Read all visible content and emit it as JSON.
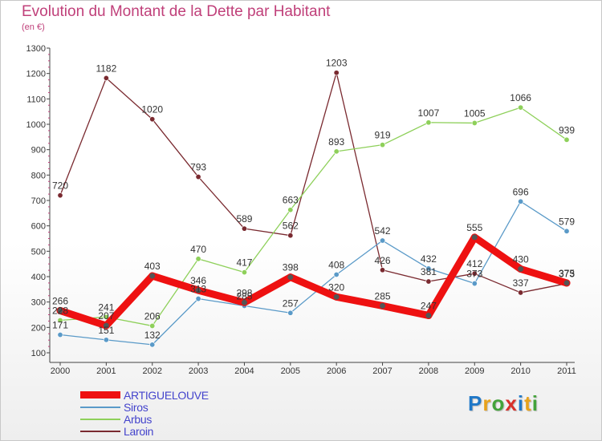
{
  "header": {
    "title": "Evolution du Montant de la Dette par Habitant",
    "subtitle": "(en €)"
  },
  "logo": {
    "text": "Proxiti",
    "letter_colors": [
      "#1f78c8",
      "#e8a21a",
      "#43a33a",
      "#d8302a",
      "#1f78c8",
      "#e8a21a",
      "#43a33a"
    ]
  },
  "chart_data": {
    "type": "line",
    "title": "Evolution du Montant de la Dette par Habitant",
    "subtitle": "(en €)",
    "xlabel": "",
    "ylabel": "",
    "categories": [
      "2000",
      "2001",
      "2002",
      "2003",
      "2004",
      "2005",
      "2006",
      "2007",
      "2008",
      "2009",
      "2010",
      "2011"
    ],
    "ylim": [
      100,
      1300
    ],
    "yticks": [
      100,
      200,
      300,
      400,
      500,
      600,
      700,
      800,
      900,
      1000,
      1100,
      1200,
      1300
    ],
    "grid": false,
    "legend_position": "bottom-left",
    "series": [
      {
        "name": "ARTIGUELOUVE",
        "color": "#ee1111",
        "label_color": "#333333",
        "emphasis": "thick",
        "values": [
          266,
          207,
          403,
          346,
          298,
          398,
          320,
          285,
          247,
          555,
          430,
          375
        ],
        "labels": [
          "266",
          "207",
          "403",
          "346",
          "298",
          "398",
          "320",
          "285",
          "247",
          "555",
          "430",
          "375"
        ]
      },
      {
        "name": "Siros",
        "color": "#5a9ac8",
        "label_color": "#333333",
        "emphasis": "normal",
        "values": [
          171,
          151,
          132,
          313,
          285,
          257,
          408,
          542,
          432,
          373,
          696,
          579
        ],
        "labels": [
          "171",
          "151",
          "132",
          "313",
          "285",
          "257",
          "408",
          "542",
          "432",
          "373",
          "696",
          "579"
        ]
      },
      {
        "name": "Arbus",
        "color": "#8ed05a",
        "label_color": "#333333",
        "emphasis": "normal",
        "values": [
          228,
          241,
          206,
          470,
          417,
          663,
          893,
          919,
          1007,
          1005,
          1066,
          939
        ],
        "labels": [
          "228",
          "241",
          "206",
          "470",
          "417",
          "663",
          "893",
          "919",
          "1007",
          "1005",
          "1066",
          "939"
        ]
      },
      {
        "name": "Laroin",
        "color": "#7a2a30",
        "label_color": "#333333",
        "emphasis": "normal",
        "values": [
          720,
          1182,
          1020,
          793,
          589,
          562,
          1203,
          426,
          381,
          412,
          337,
          373
        ],
        "labels": [
          "720",
          "1182",
          "1020",
          "793",
          "589",
          "562",
          "1203",
          "426",
          "381",
          "412",
          "337",
          "373"
        ]
      }
    ]
  }
}
